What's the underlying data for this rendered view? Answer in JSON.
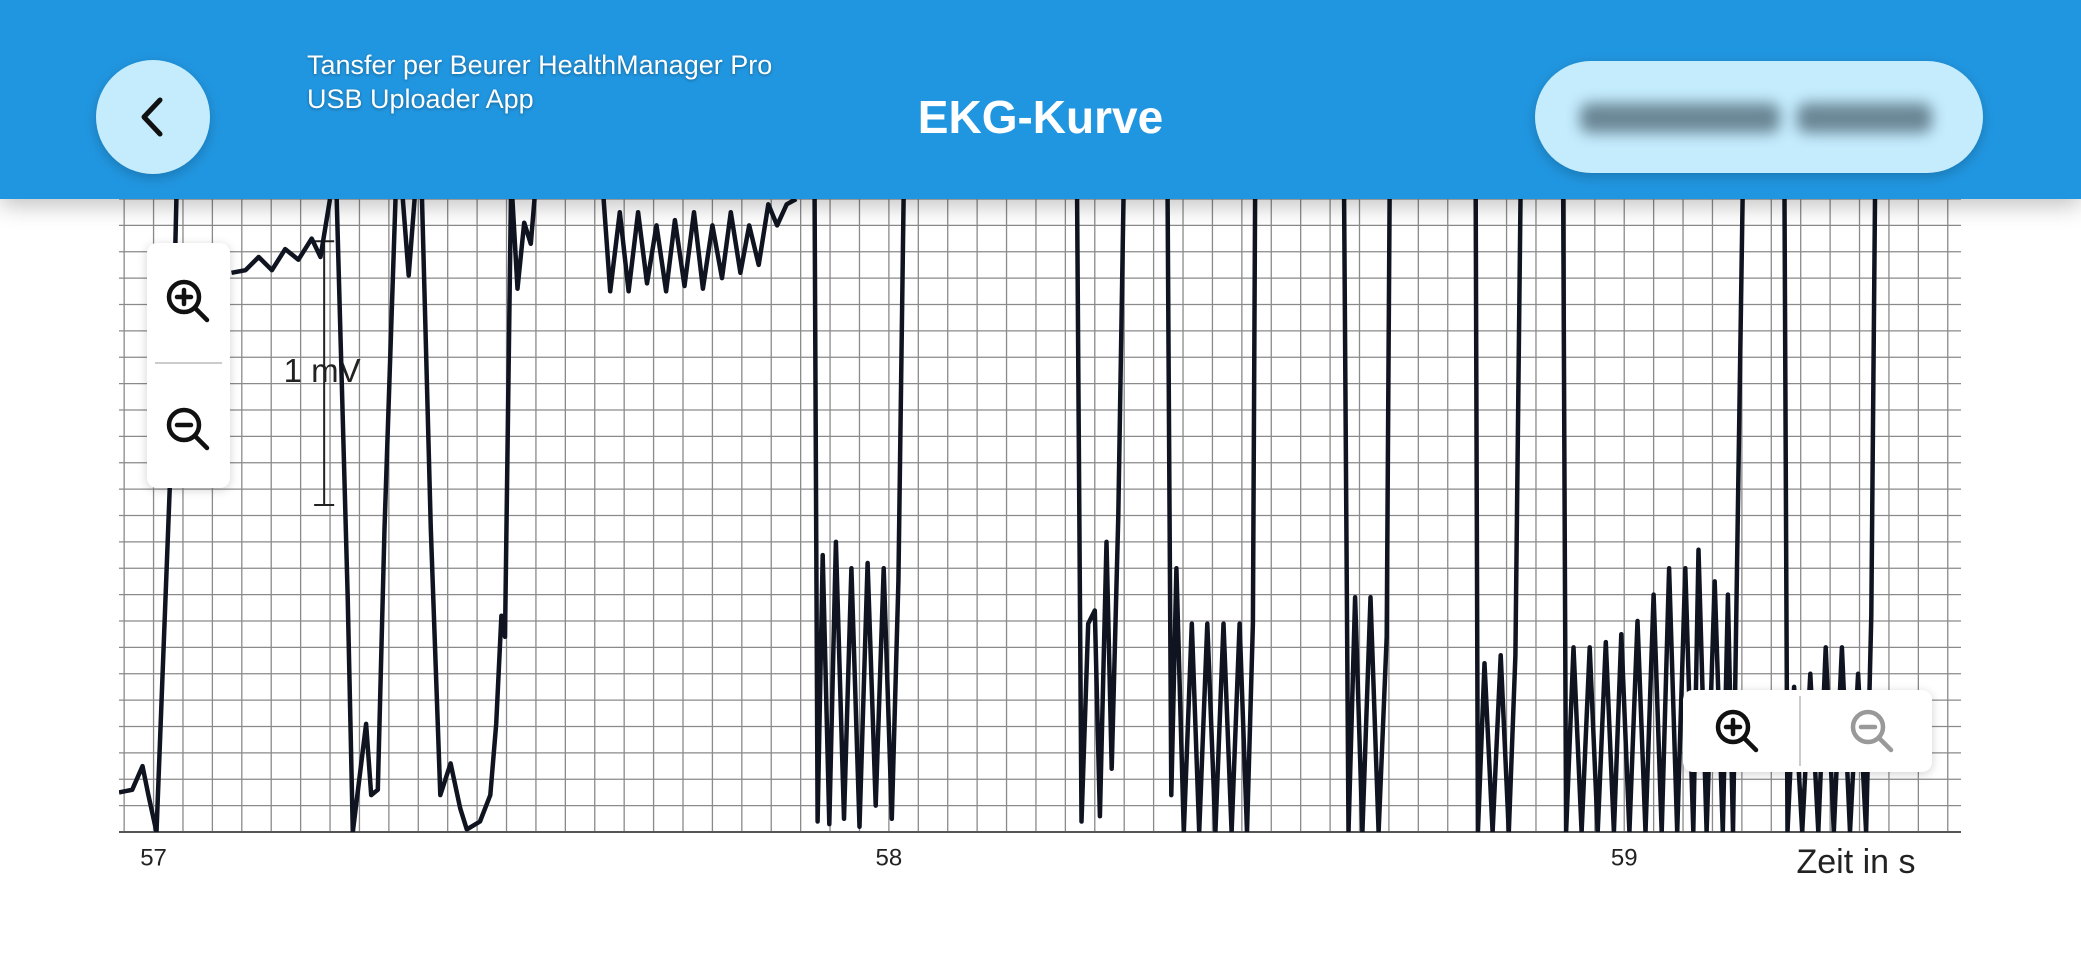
{
  "header": {
    "app_lines": [
      "Tansfer per Beurer HealthManager Pro",
      "USB Uploader App"
    ],
    "title": "EKG-Kurve"
  },
  "chart_data": {
    "type": "line",
    "x_label": "Zeit in s",
    "color": "#0f1420",
    "xlim": [
      56.953,
      59.458
    ],
    "xticks": [
      57,
      58,
      59
    ],
    "ylim": [
      0,
      2.4
    ],
    "grid": true,
    "xgrid_step": 0.04,
    "ygrid_step": 0.1,
    "scale_bar": {
      "label": "1 mV",
      "value": 1,
      "base": 1.24,
      "at": 57.232
    },
    "x": [
      56.953,
      56.971,
      56.985,
      56.993,
      57.004,
      57.022,
      57.031,
      null,
      57.106,
      57.125,
      57.143,
      57.161,
      57.179,
      57.197,
      57.215,
      57.227,
      57.24,
      null,
      57.249,
      57.264,
      57.271,
      57.289,
      57.296,
      57.305,
      57.314,
      57.329,
      null,
      57.339,
      57.347,
      57.355,
      null,
      57.365,
      57.377,
      57.39,
      57.404,
      57.417,
      57.426,
      57.444,
      57.458,
      57.466,
      57.473,
      57.478,
      57.486,
      null,
      57.488,
      57.495,
      57.504,
      57.513,
      57.518,
      null,
      57.612,
      57.621,
      57.634,
      57.646,
      57.659,
      57.671,
      57.684,
      57.697,
      57.709,
      57.722,
      57.735,
      57.747,
      57.76,
      57.773,
      57.785,
      57.798,
      57.81,
      57.823,
      57.836,
      57.848,
      57.861,
      57.874,
      null,
      57.899,
      57.903,
      57.91,
      57.919,
      57.928,
      57.939,
      57.949,
      57.96,
      57.971,
      57.982,
      57.993,
      58.004,
      58.013,
      58.02,
      null,
      58.256,
      58.262,
      58.271,
      58.28,
      58.287,
      58.296,
      58.303,
      58.312,
      58.319,
      null,
      58.379,
      58.384,
      58.391,
      58.401,
      58.412,
      58.422,
      58.433,
      58.444,
      58.455,
      58.466,
      58.477,
      58.487,
      58.495,
      58.498,
      null,
      58.619,
      58.625,
      58.634,
      58.644,
      58.655,
      58.666,
      58.677,
      58.681,
      null,
      58.798,
      58.801,
      58.81,
      58.821,
      58.832,
      58.843,
      58.852,
      58.859,
      null,
      58.917,
      58.921,
      58.931,
      58.942,
      58.953,
      58.964,
      58.975,
      58.986,
      58.996,
      59.007,
      59.018,
      59.029,
      59.04,
      59.051,
      59.061,
      59.072,
      59.083,
      59.094,
      59.101,
      59.112,
      59.123,
      59.134,
      59.141,
      59.148,
      59.161,
      null,
      59.218,
      59.222,
      59.231,
      59.242,
      59.253,
      59.264,
      59.274,
      59.285,
      59.296,
      59.307,
      59.318,
      59.329,
      59.336,
      59.341
    ],
    "values": [
      0.15,
      0.16,
      0.25,
      0.14,
      0,
      1.3,
      2.4,
      null,
      2.12,
      2.13,
      2.18,
      2.13,
      2.21,
      2.17,
      2.25,
      2.18,
      2.4,
      null,
      2.4,
      0.89,
      0,
      0.41,
      0.14,
      0.16,
      1.15,
      2.4,
      null,
      2.4,
      2.11,
      2.4,
      null,
      2.4,
      1.15,
      0.14,
      0.26,
      0.09,
      0.01,
      0.04,
      0.14,
      0.41,
      0.82,
      0.74,
      2.4,
      null,
      2.4,
      2.06,
      2.31,
      2.23,
      2.4,
      null,
      2.4,
      2.05,
      2.35,
      2.05,
      2.35,
      2.08,
      2.3,
      2.05,
      2.32,
      2.07,
      2.35,
      2.06,
      2.3,
      2.1,
      2.35,
      2.12,
      2.3,
      2.15,
      2.38,
      2.3,
      2.38,
      2.4,
      null,
      2.4,
      0.04,
      1.05,
      0.03,
      1.1,
      0.05,
      1.0,
      0.02,
      1.02,
      0.1,
      1.0,
      0.05,
      0.95,
      2.4,
      null,
      2.4,
      0.04,
      0.79,
      0.84,
      0.06,
      1.1,
      0.24,
      1.2,
      2.4,
      null,
      2.4,
      0.14,
      1.0,
      0,
      0.79,
      0,
      0.79,
      0,
      0.79,
      0,
      0.79,
      0,
      0.79,
      2.4,
      null,
      2.4,
      0,
      0.89,
      0,
      0.89,
      0,
      0.74,
      2.4,
      null,
      2.4,
      0,
      0.64,
      0,
      0.67,
      0,
      0.67,
      2.4,
      null,
      2.4,
      0,
      0.7,
      0,
      0.7,
      0,
      0.72,
      0,
      0.75,
      0,
      0.8,
      0,
      0.9,
      0,
      1.0,
      0,
      1.0,
      0,
      1.07,
      0,
      0.95,
      0,
      0.9,
      0,
      2.4,
      null,
      2.4,
      0,
      0.55,
      0,
      0.6,
      0,
      0.7,
      0,
      0.7,
      0,
      0.6,
      0,
      0.82,
      2.4
    ]
  }
}
